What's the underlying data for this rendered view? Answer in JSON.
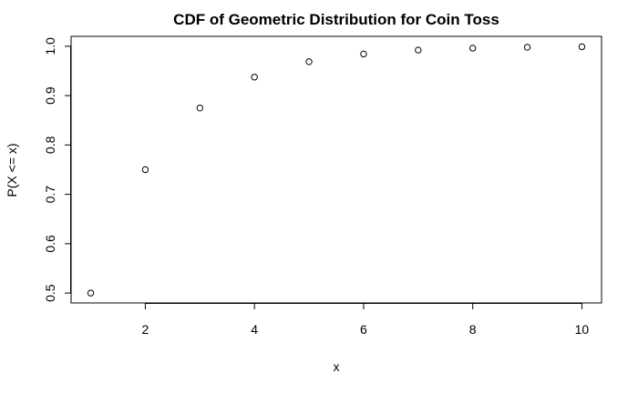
{
  "chart_data": {
    "type": "scatter",
    "title": "CDF of Geometric Distribution for Coin Toss",
    "xlabel": "x",
    "ylabel": "P(X <= x)",
    "x": [
      1,
      2,
      3,
      4,
      5,
      6,
      7,
      8,
      9,
      10
    ],
    "y": [
      0.5,
      0.75,
      0.875,
      0.9375,
      0.96875,
      0.984375,
      0.9921875,
      0.99609375,
      0.998046875,
      0.9990234375
    ],
    "x_ticks": [
      2,
      4,
      6,
      8,
      10
    ],
    "y_ticks": [
      0.5,
      0.6,
      0.7,
      0.8,
      0.9,
      1.0
    ],
    "x_tick_labels": [
      "2",
      "4",
      "6",
      "8",
      "10"
    ],
    "y_tick_labels": [
      "0.5",
      "0.6",
      "0.7",
      "0.8",
      "0.9",
      "1.0"
    ],
    "xlim": [
      0.64,
      10.36
    ],
    "ylim": [
      0.48,
      1.02
    ],
    "marker": "open-circle",
    "grid": false,
    "legend": "none",
    "colors": {
      "points": "#000000",
      "axes": "#000000",
      "background": "#ffffff"
    }
  }
}
